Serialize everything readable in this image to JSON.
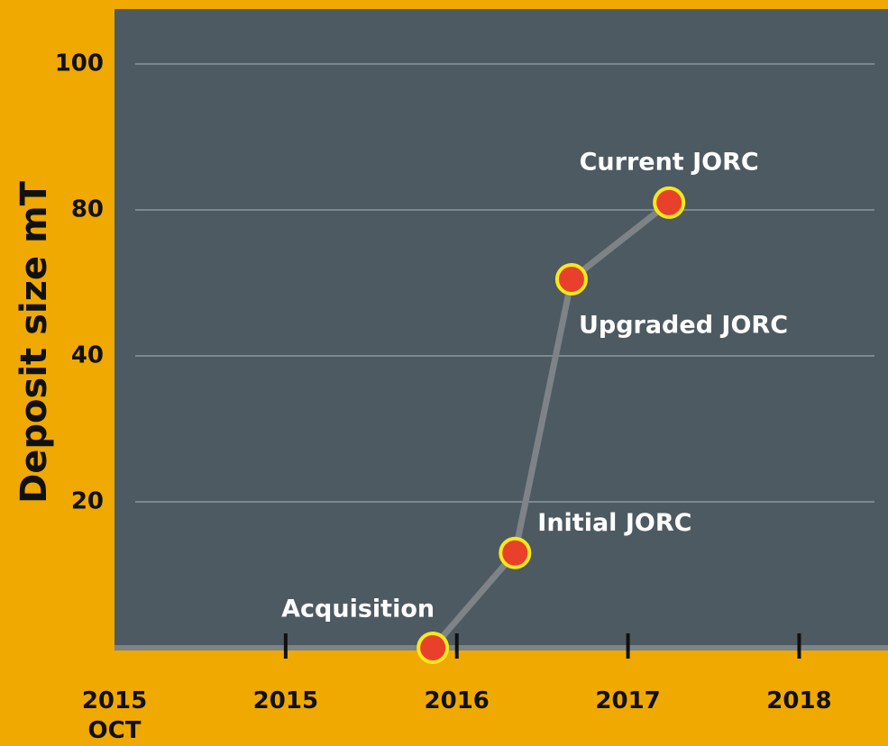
{
  "chart_data": {
    "type": "line",
    "y_label": "Deposit size mT",
    "xticks": [
      {
        "value": 0,
        "label": "2015 OCT"
      },
      {
        "value": 1,
        "label": "2015"
      },
      {
        "value": 2,
        "label": "2016"
      },
      {
        "value": 3,
        "label": "2017"
      },
      {
        "value": 4,
        "label": "2018"
      }
    ],
    "xlim": [
      0,
      4.44
    ],
    "ylim": [
      0,
      100
    ],
    "yticks": [
      20,
      40,
      80,
      100
    ],
    "grid": true,
    "series": [
      {
        "name": "Deposit size",
        "color": "#7d8387",
        "marker_color": "#e8402a",
        "marker_edge": "#f7e81c",
        "x": [
          1.86,
          2.34,
          2.67,
          3.24
        ],
        "values": [
          0,
          13,
          61,
          81
        ]
      }
    ],
    "point_labels": [
      "Acquisition",
      "Initial JORC",
      "Upgraded JORC",
      "Current JORC"
    ]
  }
}
